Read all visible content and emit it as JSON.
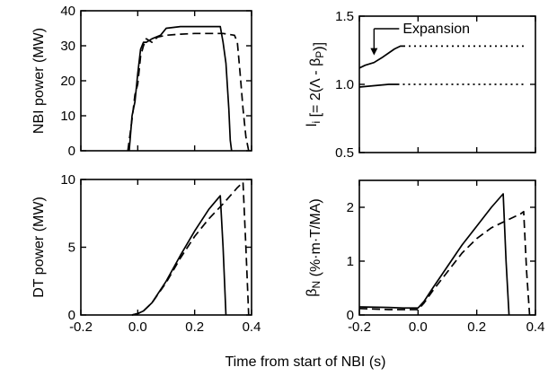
{
  "figure": {
    "xlabel": "Time from start of NBI (s)"
  },
  "chart_data": [
    {
      "type": "line",
      "panel": "top-left",
      "ylabel": "NBI power (MW)",
      "xlim": [
        -0.2,
        0.4
      ],
      "ylim": [
        0,
        40
      ],
      "xticks": [
        "-0.2",
        "0.0",
        "0.2",
        "0.4"
      ],
      "yticks": [
        "0",
        "10",
        "20",
        "30",
        "40"
      ],
      "show_x_tick_labels": false,
      "series": [
        {
          "style": "solid",
          "x": [
            -0.03,
            -0.02,
            -0.01,
            0.0,
            0.01,
            0.02,
            0.03,
            0.05,
            0.08,
            0.1,
            0.15,
            0.2,
            0.25,
            0.29,
            0.3,
            0.31,
            0.32,
            0.325,
            0.33
          ],
          "y": [
            0,
            10,
            14,
            22,
            29,
            31,
            31,
            32,
            33,
            35,
            35.5,
            35.5,
            35.5,
            35.5,
            31,
            25,
            12,
            3,
            0
          ]
        },
        {
          "style": "dashed",
          "x": [
            -0.035,
            -0.02,
            -0.01,
            0.0,
            0.01,
            0.02,
            0.03,
            0.05,
            0.07,
            0.1,
            0.15,
            0.2,
            0.25,
            0.3,
            0.34,
            0.35,
            0.36,
            0.37,
            0.38,
            0.39
          ],
          "y": [
            0,
            9,
            16,
            19,
            27,
            30,
            32,
            31,
            32.5,
            33,
            33.3,
            33.5,
            33.5,
            33.5,
            33,
            31,
            22,
            12,
            4,
            0
          ]
        }
      ]
    },
    {
      "type": "line",
      "panel": "top-right",
      "ylabel": "l_i [= 2(Λ - β_P)]",
      "xlim": [
        -0.2,
        0.4
      ],
      "ylim": [
        0.5,
        1.5
      ],
      "xticks": [
        "-0.2",
        "0.0",
        "0.2",
        "0.4"
      ],
      "yticks": [
        "0.5",
        "1.0",
        "1.5"
      ],
      "show_x_tick_labels": false,
      "annotation": {
        "text": "Expansion",
        "x": -0.15,
        "y": 1.2
      },
      "series": [
        {
          "style": "solid",
          "x": [
            -0.2,
            -0.18,
            -0.15,
            -0.12,
            -0.1,
            -0.08,
            -0.06,
            -0.05
          ],
          "y": [
            1.12,
            1.14,
            1.16,
            1.2,
            1.23,
            1.26,
            1.28,
            1.28
          ]
        },
        {
          "style": "dotted",
          "x": [
            -0.05,
            0.0,
            0.1,
            0.2,
            0.3,
            0.36
          ],
          "y": [
            1.28,
            1.28,
            1.28,
            1.28,
            1.28,
            1.28
          ]
        },
        {
          "style": "solid",
          "x": [
            -0.2,
            -0.15,
            -0.1,
            -0.07
          ],
          "y": [
            0.98,
            0.99,
            1.0,
            1.0
          ]
        },
        {
          "style": "dotted",
          "x": [
            -0.07,
            0.0,
            0.1,
            0.2,
            0.3,
            0.36
          ],
          "y": [
            1.0,
            1.0,
            1.0,
            1.0,
            1.0,
            1.0
          ]
        }
      ]
    },
    {
      "type": "line",
      "panel": "bottom-left",
      "ylabel": "DT power (MW)",
      "xlim": [
        -0.2,
        0.4
      ],
      "ylim": [
        0,
        10
      ],
      "xticks": [
        "-0.2",
        "0.0",
        "0.2",
        "0.4"
      ],
      "yticks": [
        "0",
        "5",
        "10"
      ],
      "show_x_tick_labels": true,
      "series": [
        {
          "style": "solid",
          "x": [
            -0.02,
            0.0,
            0.02,
            0.05,
            0.1,
            0.15,
            0.2,
            0.25,
            0.29,
            0.3,
            0.31
          ],
          "y": [
            0,
            0.1,
            0.3,
            0.9,
            2.5,
            4.4,
            6.2,
            7.8,
            8.8,
            5,
            0
          ]
        },
        {
          "style": "dashed",
          "x": [
            -0.02,
            0.0,
            0.02,
            0.05,
            0.1,
            0.15,
            0.2,
            0.25,
            0.3,
            0.35,
            0.37,
            0.38,
            0.39
          ],
          "y": [
            0,
            0.1,
            0.3,
            0.9,
            2.4,
            4.2,
            5.8,
            7.1,
            8.2,
            9.4,
            9.8,
            5,
            0
          ]
        }
      ]
    },
    {
      "type": "line",
      "panel": "bottom-right",
      "ylabel": "β_N (%·m·T/MA)",
      "xlim": [
        -0.2,
        0.4
      ],
      "ylim": [
        0,
        2.5
      ],
      "xticks": [
        "-0.2",
        "0.0",
        "0.2",
        "0.4"
      ],
      "yticks": [
        "0",
        "1",
        "2"
      ],
      "show_x_tick_labels": true,
      "series": [
        {
          "style": "solid",
          "x": [
            -0.2,
            -0.1,
            -0.05,
            0.0,
            0.02,
            0.05,
            0.1,
            0.15,
            0.2,
            0.25,
            0.29,
            0.3,
            0.31
          ],
          "y": [
            0.15,
            0.14,
            0.13,
            0.13,
            0.25,
            0.5,
            0.9,
            1.3,
            1.65,
            2.0,
            2.25,
            1.0,
            0
          ]
        },
        {
          "style": "dashed",
          "x": [
            -0.2,
            -0.1,
            -0.05,
            0.0,
            0.02,
            0.05,
            0.1,
            0.15,
            0.2,
            0.25,
            0.3,
            0.35,
            0.36,
            0.37,
            0.38
          ],
          "y": [
            0.12,
            0.1,
            0.1,
            0.1,
            0.22,
            0.45,
            0.8,
            1.15,
            1.42,
            1.62,
            1.75,
            1.88,
            1.92,
            0.8,
            0
          ]
        }
      ]
    }
  ]
}
